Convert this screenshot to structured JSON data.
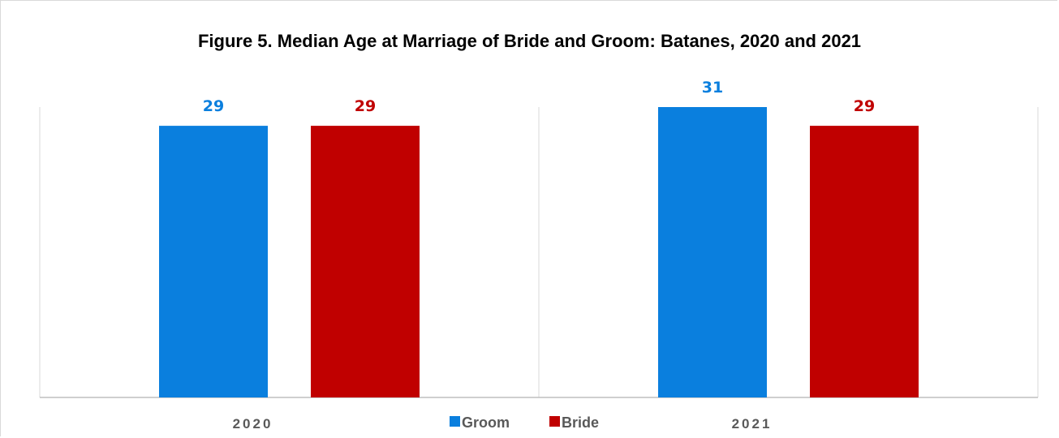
{
  "chart_data": {
    "type": "bar",
    "title": "Figure 5. Median Age at Marriage of Bride and Groom: Batanes, 2020 and 2021",
    "xlabel": "",
    "ylabel": "",
    "categories": [
      "2020",
      "2021"
    ],
    "series": [
      {
        "name": "Groom",
        "values": [
          29,
          31
        ],
        "color": "#0a7fde"
      },
      {
        "name": "Bride",
        "values": [
          29,
          29
        ],
        "color": "#c00000"
      }
    ],
    "ylim": [
      0,
      31
    ],
    "grid": false,
    "legend_position": "bottom"
  }
}
